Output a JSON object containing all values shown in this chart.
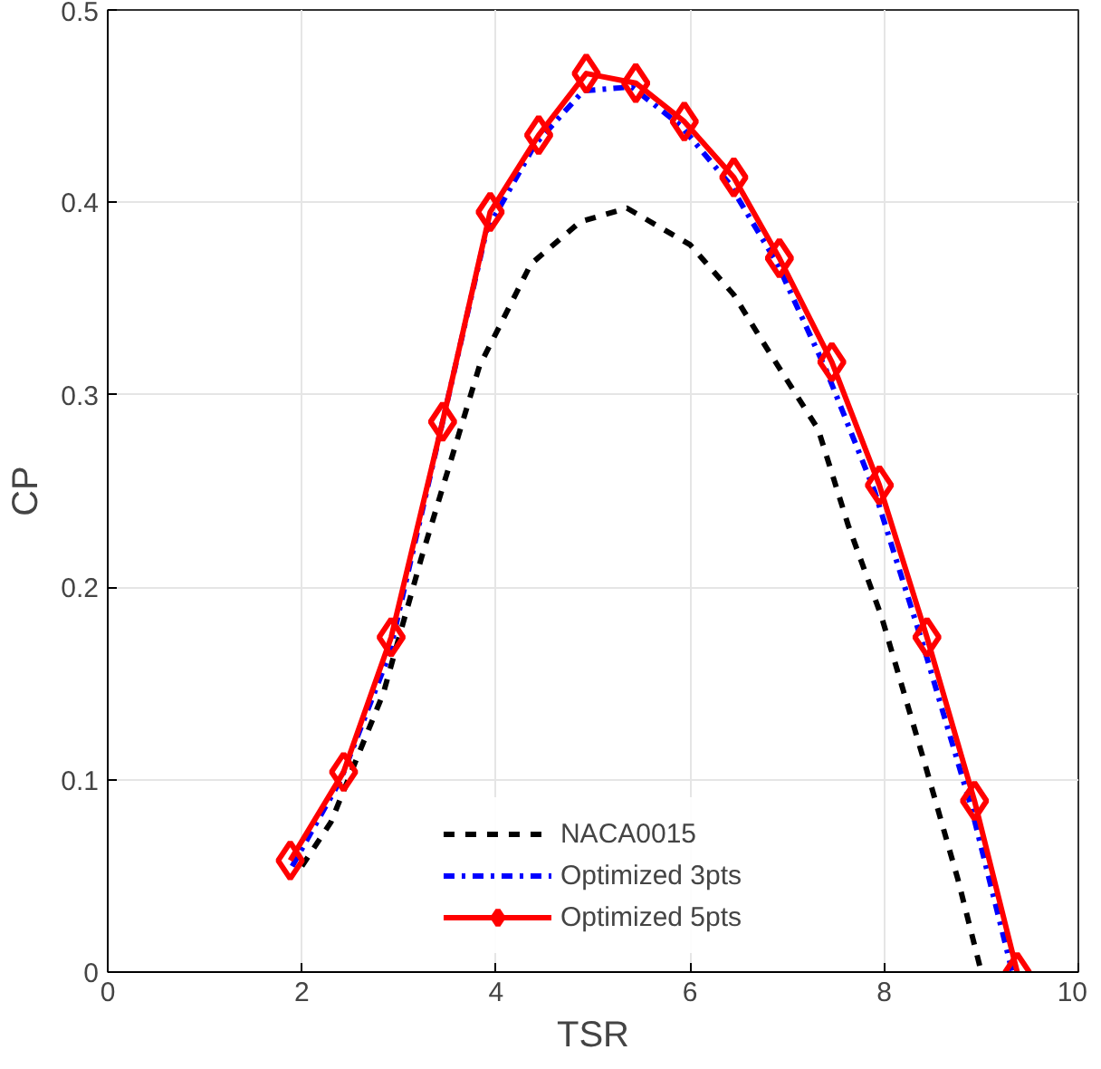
{
  "chart_data": {
    "type": "line",
    "xlabel": "TSR",
    "ylabel": "CP",
    "xlim": [
      0,
      10
    ],
    "ylim": [
      0,
      0.5
    ],
    "xticks": [
      0,
      2,
      4,
      6,
      8,
      10
    ],
    "yticks": [
      0,
      0.1,
      0.2,
      0.3,
      0.4,
      0.5
    ],
    "grid": true,
    "legend": "bottom",
    "series": [
      {
        "name": "NACA0015",
        "color": "#000000",
        "line_style": "dashed",
        "marker": "none",
        "x": [
          2.0,
          2.3,
          2.84,
          3.23,
          3.5,
          3.83,
          4.36,
          4.87,
          5.35,
          6.0,
          6.45,
          6.78,
          7.32,
          7.63,
          7.97,
          8.42,
          8.76,
          9.0
        ],
        "values": [
          0.055,
          0.078,
          0.145,
          0.215,
          0.26,
          0.315,
          0.368,
          0.39,
          0.397,
          0.378,
          0.352,
          0.325,
          0.282,
          0.232,
          0.185,
          0.108,
          0.048,
          0
        ]
      },
      {
        "name": "Optimized 3pts",
        "color": "#0000ff",
        "line_style": "dashdot",
        "marker": "none",
        "x": [
          1.9,
          2.4,
          2.9,
          3.4,
          3.9,
          4.4,
          4.9,
          5.4,
          5.9,
          6.4,
          6.9,
          7.4,
          7.9,
          8.4,
          8.9,
          9.32
        ],
        "values": [
          0.055,
          0.1,
          0.165,
          0.275,
          0.385,
          0.43,
          0.458,
          0.46,
          0.44,
          0.41,
          0.368,
          0.313,
          0.25,
          0.17,
          0.085,
          0
        ]
      },
      {
        "name": "Optimized 5pts",
        "color": "#ff0000",
        "line_style": "solid",
        "marker": "diamond",
        "x": [
          1.88,
          2.43,
          2.92,
          3.45,
          3.94,
          4.44,
          4.93,
          5.44,
          5.94,
          6.45,
          6.92,
          7.46,
          7.95,
          8.44,
          8.93,
          9.37
        ],
        "values": [
          0.058,
          0.104,
          0.174,
          0.286,
          0.395,
          0.435,
          0.467,
          0.462,
          0.442,
          0.413,
          0.371,
          0.317,
          0.253,
          0.174,
          0.089,
          0
        ]
      }
    ]
  }
}
